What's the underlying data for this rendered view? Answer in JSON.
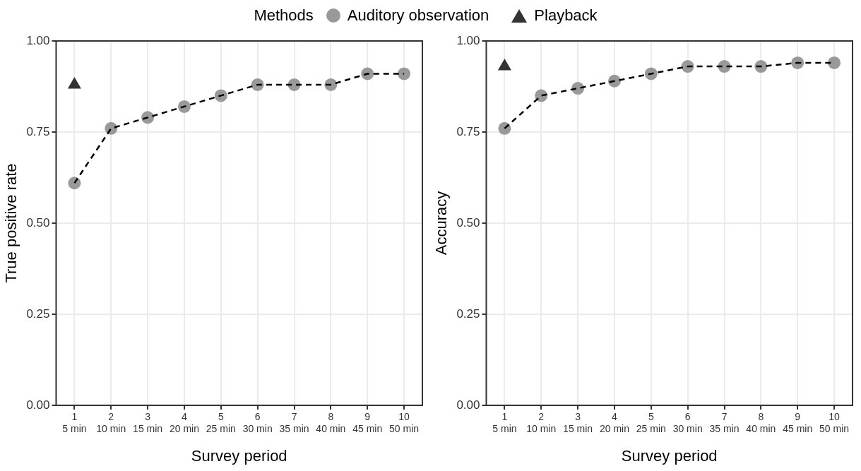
{
  "chart_data": [
    {
      "type": "line",
      "legend_title": "Methods",
      "legend": "top",
      "grid": true,
      "xlabel": "Survey period",
      "ylabel": "True positive rate",
      "categories": [
        "1\n5 min",
        "2\n10 min",
        "3\n15 min",
        "4\n20 min",
        "5\n25 min",
        "6\n30 min",
        "7\n35 min",
        "8\n40 min",
        "9\n45 min",
        "10\n50 min"
      ],
      "ylim": [
        0,
        1
      ],
      "yticks": [
        {
          "value": 0,
          "label": "0.00"
        },
        {
          "value": 0.25,
          "label": "0.25"
        },
        {
          "value": 0.5,
          "label": "0.50"
        },
        {
          "value": 0.75,
          "label": "0.75"
        },
        {
          "value": 1,
          "label": "1.00"
        }
      ],
      "series": [
        {
          "color": "#000000",
          "line_style": "dashed",
          "marker": "none",
          "values": [
            0.61,
            0.76,
            0.79,
            0.82,
            0.85,
            0.88,
            0.88,
            0.88,
            0.91,
            0.91
          ]
        },
        {
          "type": "scatter",
          "name": "Auditory observation",
          "color": "#999999",
          "marker": "circle",
          "values": [
            0.61,
            0.76,
            0.79,
            0.82,
            0.85,
            0.88,
            0.88,
            0.88,
            0.91,
            0.91
          ]
        },
        {
          "type": "scatter",
          "name": "Playback",
          "color": "#333333",
          "marker": "triangle",
          "values": [
            0.88,
            null,
            null,
            null,
            null,
            null,
            null,
            null,
            null,
            null
          ]
        }
      ]
    },
    {
      "type": "line",
      "grid": true,
      "xlabel": "Survey period",
      "ylabel": "Accuracy",
      "categories": [
        "1\n5 min",
        "2\n10 min",
        "3\n15 min",
        "4\n20 min",
        "5\n25 min",
        "6\n30 min",
        "7\n35 min",
        "8\n40 min",
        "9\n45 min",
        "10\n50 min"
      ],
      "ylim": [
        0,
        1
      ],
      "yticks": [
        {
          "value": 0,
          "label": "0.00"
        },
        {
          "value": 0.25,
          "label": "0.25"
        },
        {
          "value": 0.5,
          "label": "0.50"
        },
        {
          "value": 0.75,
          "label": "0.75"
        },
        {
          "value": 1,
          "label": "1.00"
        }
      ],
      "series": [
        {
          "color": "#000000",
          "line_style": "dashed",
          "marker": "none",
          "values": [
            0.76,
            0.85,
            0.87,
            0.89,
            0.91,
            0.93,
            0.93,
            0.93,
            0.94,
            0.94
          ]
        },
        {
          "type": "scatter",
          "color": "#999999",
          "marker": "circle",
          "values": [
            0.76,
            0.85,
            0.87,
            0.89,
            0.91,
            0.93,
            0.93,
            0.93,
            0.94,
            0.94
          ]
        },
        {
          "type": "scatter",
          "color": "#333333",
          "marker": "triangle",
          "values": [
            0.93,
            null,
            null,
            null,
            null,
            null,
            null,
            null,
            null,
            null
          ]
        }
      ]
    }
  ]
}
